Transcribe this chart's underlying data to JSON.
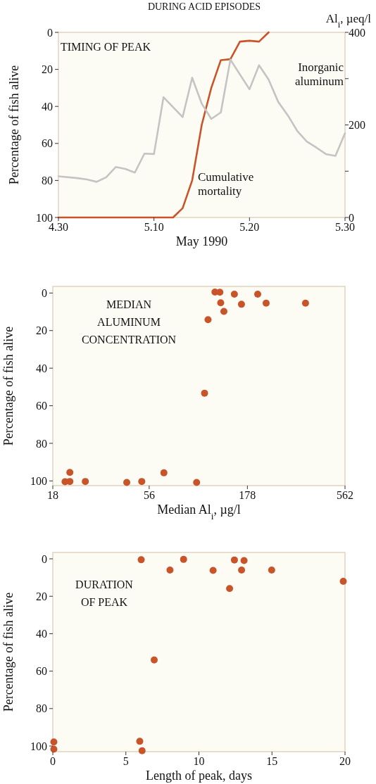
{
  "chart_data": [
    {
      "type": "line",
      "title": "DURING ACID EPISODES",
      "xlabel": "May 1990",
      "ylabel": "Percentage of fish alive",
      "y2label": "Al$_{i}$, µeq/l",
      "annotations": [
        "TIMING OF PEAK"
      ],
      "xlim": [
        "--04-30",
        "--05-30"
      ],
      "xticks": [
        {
          "value": "--04-30",
          "label": "4.30"
        },
        {
          "value": "--05-10",
          "label": "5.10"
        },
        {
          "value": "--05-20",
          "label": "5.20"
        },
        {
          "value": "--05-30",
          "label": "5.30"
        }
      ],
      "ylim": [
        100,
        0
      ],
      "yticks": [
        0,
        20,
        40,
        60,
        80,
        100
      ],
      "y2lim": [
        0,
        400
      ],
      "y2ticks": [
        0,
        {
          "value": 100,
          "label": null
        },
        200,
        {
          "value": 300,
          "label": null
        },
        400
      ],
      "series": [
        {
          "name": "Cumulative mortality",
          "color": "#c8552a",
          "x": [
            "--04-30",
            "--05-12",
            "--05-13",
            "--05-14",
            "--05-15",
            "--05-16",
            "--05-17",
            "--05-18",
            "--05-19",
            "--05-20",
            "--05-21",
            "--05-22"
          ],
          "values": [
            100,
            100,
            95,
            80,
            50,
            30,
            15,
            14.5,
            5,
            4.5,
            5,
            0
          ]
        },
        {
          "name": "Inorganic aluminum",
          "color": "#c4c4c4",
          "axis": "y2",
          "x": [
            "--04-30",
            "--05-02",
            "--05-03",
            "--05-04",
            "--05-05",
            "--05-06",
            "--05-07",
            "--05-08",
            "--05-09",
            "--05-10",
            "--05-11",
            "--05-13",
            "--05-14",
            "--05-15",
            "--05-16",
            "--05-17",
            "--05-18",
            "--05-20",
            "--05-21",
            "--05-22",
            "--05-23",
            "--05-24",
            "--05-25",
            "--05-26",
            "--05-27",
            "--05-28",
            "--05-29",
            "--05-30"
          ],
          "values": [
            89,
            85,
            82,
            77,
            87,
            109,
            105,
            97,
            138,
            137,
            260,
            217,
            302,
            246,
            213,
            227,
            341,
            277,
            329,
            298,
            250,
            221,
            187,
            164,
            151,
            137,
            133,
            182
          ]
        }
      ]
    },
    {
      "type": "scatter",
      "xlabel": "Median Al$_{i}$, µg/l",
      "ylabel": "Percentage of fish alive",
      "annotations": [
        "MEDIAN ALUMINUM CONCENTRATION"
      ],
      "log": "x",
      "marker": "circle",
      "xlim": [
        18,
        562
      ],
      "xticks": [
        18,
        56,
        178,
        562
      ],
      "ylim": [
        102.5,
        -3.5
      ],
      "yticks": [
        0,
        20,
        40,
        60,
        80,
        100
      ],
      "series": [
        {
          "color": "#c8552a",
          "x": [
            121.5,
            128.7,
            152.7,
            201,
            130,
            166,
            222,
            353,
            135,
            112,
            107.5,
            22,
            20.8,
            22,
            26.4,
            43,
            51.3,
            66.6,
            97.9
          ],
          "values": [
            -0.5,
            -0.4,
            0.6,
            0.6,
            5.2,
            6,
            5.4,
            5.4,
            9.8,
            14.2,
            53.3,
            95.5,
            100.4,
            100.3,
            100.3,
            100.8,
            100.3,
            95.7,
            100.8
          ]
        }
      ]
    },
    {
      "type": "scatter",
      "xlabel": "Length of peak, days",
      "ylabel": "Percentage of fish alive",
      "annotations": [
        "DURATION OF PEAK"
      ],
      "marker": "circle",
      "xlim": [
        0,
        20
      ],
      "xticks": [
        0,
        5,
        10,
        15,
        20
      ],
      "ylim": [
        103,
        -3.4
      ],
      "yticks": [
        0,
        20,
        40,
        60,
        80,
        100
      ],
      "series": [
        {
          "color": "#c8552a",
          "x": [
            6.05,
            8.95,
            12.43,
            13.09,
            8.02,
            10.97,
            12.92,
            14.98,
            12.1,
            19.88,
            6.94,
            0.07,
            0.07,
            5.95,
            6.11
          ],
          "values": [
            0.5,
            0.3,
            0.6,
            0.9,
            6,
            6.2,
            6,
            6,
            15.9,
            12,
            54,
            97.8,
            101.7,
            97.5,
            102.5
          ]
        }
      ]
    }
  ]
}
